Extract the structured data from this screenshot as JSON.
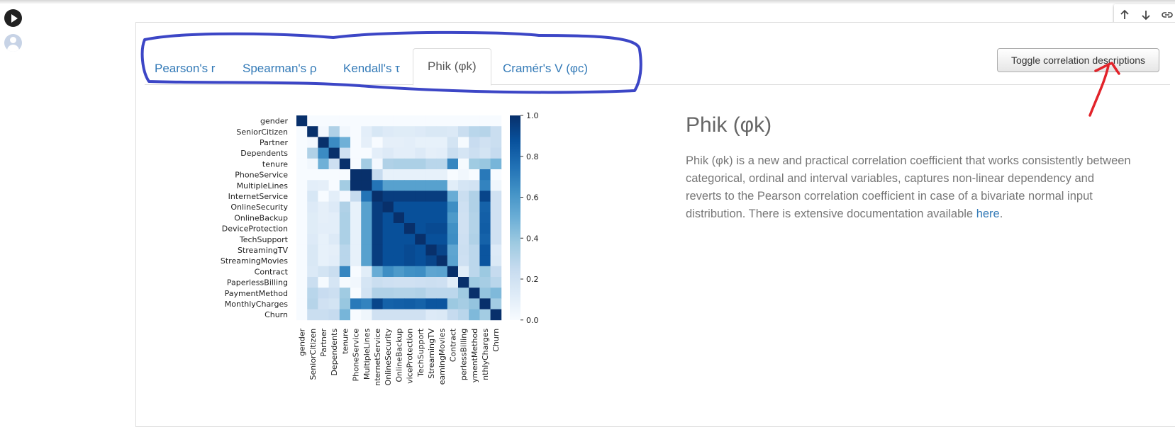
{
  "tabs": [
    {
      "label": "Pearson's r"
    },
    {
      "label": "Spearman's ρ"
    },
    {
      "label": "Kendall's τ"
    },
    {
      "label": "Phik (φk)",
      "active": true
    },
    {
      "label": "Cramér's V (φc)"
    }
  ],
  "toggle_button": {
    "label": "Toggle correlation descriptions"
  },
  "description": {
    "title": "Phik (φk)",
    "text": "Phik (φk) is a new and practical correlation coefficient that works consistently between categorical, ordinal and interval variables, captures non-linear dependency and reverts to the Pearson correlation coefficient in case of a bivariate normal input distribution. There is extensive documentation available ",
    "link_text": "here",
    "suffix": "."
  },
  "toolbar": {
    "icons": [
      "arrow-up-icon",
      "arrow-down-icon",
      "link-icon"
    ]
  },
  "chart_data": {
    "type": "heatmap",
    "title": "",
    "variables": [
      "gender",
      "SeniorCitizen",
      "Partner",
      "Dependents",
      "tenure",
      "PhoneService",
      "MultipleLines",
      "InternetService",
      "OnlineSecurity",
      "OnlineBackup",
      "DeviceProtection",
      "TechSupport",
      "StreamingTV",
      "StreamingMovies",
      "Contract",
      "PaperlessBilling",
      "PaymentMethod",
      "MonthlyCharges",
      "Churn"
    ],
    "x_tick_labels": [
      "gender",
      "SeniorCitizen",
      "Partner",
      "Dependents",
      "tenure",
      "PhoneService",
      "MultipleLines",
      "nternetService",
      "OnlineSecurity",
      "OnlineBackup",
      "viceProtection",
      "TechSupport",
      "StreamingTV",
      "eamingMovies",
      "Contract",
      "perlessBilling",
      "ymentMethod",
      "nthlyCharges",
      "Churn"
    ],
    "matrix": [
      [
        1.0,
        0.0,
        0.0,
        0.0,
        0.0,
        0.0,
        0.0,
        0.0,
        0.0,
        0.0,
        0.0,
        0.0,
        0.0,
        0.0,
        0.0,
        0.0,
        0.0,
        0.0,
        0.0
      ],
      [
        0.0,
        1.0,
        0.02,
        0.32,
        0.03,
        0.0,
        0.1,
        0.16,
        0.13,
        0.12,
        0.12,
        0.13,
        0.15,
        0.15,
        0.14,
        0.23,
        0.29,
        0.3,
        0.23
      ],
      [
        0.0,
        0.02,
        1.0,
        0.65,
        0.49,
        0.0,
        0.09,
        0.0,
        0.09,
        0.09,
        0.1,
        0.08,
        0.08,
        0.08,
        0.18,
        0.01,
        0.24,
        0.2,
        0.23
      ],
      [
        0.0,
        0.32,
        0.65,
        1.0,
        0.21,
        0.0,
        0.0,
        0.1,
        0.13,
        0.1,
        0.1,
        0.13,
        0.09,
        0.1,
        0.23,
        0.17,
        0.22,
        0.18,
        0.25
      ],
      [
        0.0,
        0.03,
        0.49,
        0.21,
        1.0,
        0.0,
        0.36,
        0.02,
        0.32,
        0.33,
        0.33,
        0.33,
        0.29,
        0.29,
        0.67,
        0.01,
        0.37,
        0.39,
        0.47
      ],
      [
        0.0,
        0.0,
        0.0,
        0.0,
        0.0,
        1.0,
        1.0,
        0.25,
        0.08,
        0.08,
        0.08,
        0.08,
        0.08,
        0.08,
        0.0,
        0.03,
        0.0,
        0.72,
        0.0
      ],
      [
        0.0,
        0.1,
        0.09,
        0.0,
        0.36,
        1.0,
        1.0,
        0.74,
        0.56,
        0.56,
        0.56,
        0.56,
        0.56,
        0.56,
        0.11,
        0.17,
        0.19,
        0.68,
        0.04
      ],
      [
        0.0,
        0.16,
        0.0,
        0.1,
        0.02,
        0.25,
        0.74,
        1.0,
        0.95,
        0.95,
        0.95,
        0.95,
        0.95,
        0.95,
        0.51,
        0.23,
        0.32,
        0.92,
        0.2
      ],
      [
        0.0,
        0.13,
        0.09,
        0.13,
        0.32,
        0.08,
        0.56,
        0.95,
        1.0,
        0.88,
        0.88,
        0.88,
        0.88,
        0.88,
        0.64,
        0.21,
        0.32,
        0.81,
        0.2
      ],
      [
        0.0,
        0.12,
        0.09,
        0.1,
        0.33,
        0.08,
        0.56,
        0.95,
        0.88,
        1.0,
        0.88,
        0.88,
        0.88,
        0.88,
        0.59,
        0.2,
        0.31,
        0.82,
        0.2
      ],
      [
        0.0,
        0.12,
        0.1,
        0.1,
        0.33,
        0.08,
        0.56,
        0.95,
        0.88,
        0.88,
        1.0,
        0.88,
        0.9,
        0.9,
        0.63,
        0.2,
        0.31,
        0.83,
        0.2
      ],
      [
        0.0,
        0.13,
        0.08,
        0.13,
        0.33,
        0.08,
        0.56,
        0.95,
        0.88,
        0.88,
        0.88,
        1.0,
        0.88,
        0.88,
        0.64,
        0.21,
        0.32,
        0.81,
        0.2
      ],
      [
        0.0,
        0.15,
        0.08,
        0.09,
        0.29,
        0.08,
        0.56,
        0.95,
        0.88,
        0.88,
        0.9,
        0.88,
        1.0,
        0.92,
        0.54,
        0.22,
        0.28,
        0.86,
        0.13
      ],
      [
        0.0,
        0.15,
        0.08,
        0.1,
        0.29,
        0.08,
        0.56,
        0.95,
        0.88,
        0.88,
        0.9,
        0.88,
        0.92,
        1.0,
        0.55,
        0.21,
        0.28,
        0.86,
        0.14
      ],
      [
        0.0,
        0.14,
        0.18,
        0.23,
        0.67,
        0.0,
        0.11,
        0.51,
        0.64,
        0.59,
        0.63,
        0.64,
        0.54,
        0.55,
        1.0,
        0.11,
        0.28,
        0.38,
        0.25
      ],
      [
        0.0,
        0.23,
        0.01,
        0.17,
        0.01,
        0.03,
        0.17,
        0.23,
        0.21,
        0.2,
        0.2,
        0.21,
        0.22,
        0.21,
        0.11,
        1.0,
        0.37,
        0.35,
        0.29
      ],
      [
        0.0,
        0.29,
        0.24,
        0.22,
        0.37,
        0.0,
        0.19,
        0.32,
        0.32,
        0.31,
        0.31,
        0.32,
        0.28,
        0.28,
        0.28,
        0.37,
        1.0,
        0.4,
        0.45
      ],
      [
        0.0,
        0.3,
        0.2,
        0.18,
        0.39,
        0.72,
        0.68,
        0.92,
        0.81,
        0.82,
        0.83,
        0.81,
        0.86,
        0.86,
        0.38,
        0.35,
        0.4,
        1.0,
        0.36
      ],
      [
        0.0,
        0.23,
        0.23,
        0.25,
        0.47,
        0.0,
        0.04,
        0.2,
        0.2,
        0.2,
        0.2,
        0.2,
        0.13,
        0.14,
        0.25,
        0.29,
        0.45,
        0.36,
        1.0
      ]
    ],
    "colorbar_ticks": [
      "0.0",
      "0.2",
      "0.4",
      "0.6",
      "0.8",
      "1.0"
    ],
    "vmin": 0,
    "vmax": 1,
    "colormap": "Blues",
    "colors": {
      "low": "#f7fbff",
      "high": "#08306b"
    }
  }
}
